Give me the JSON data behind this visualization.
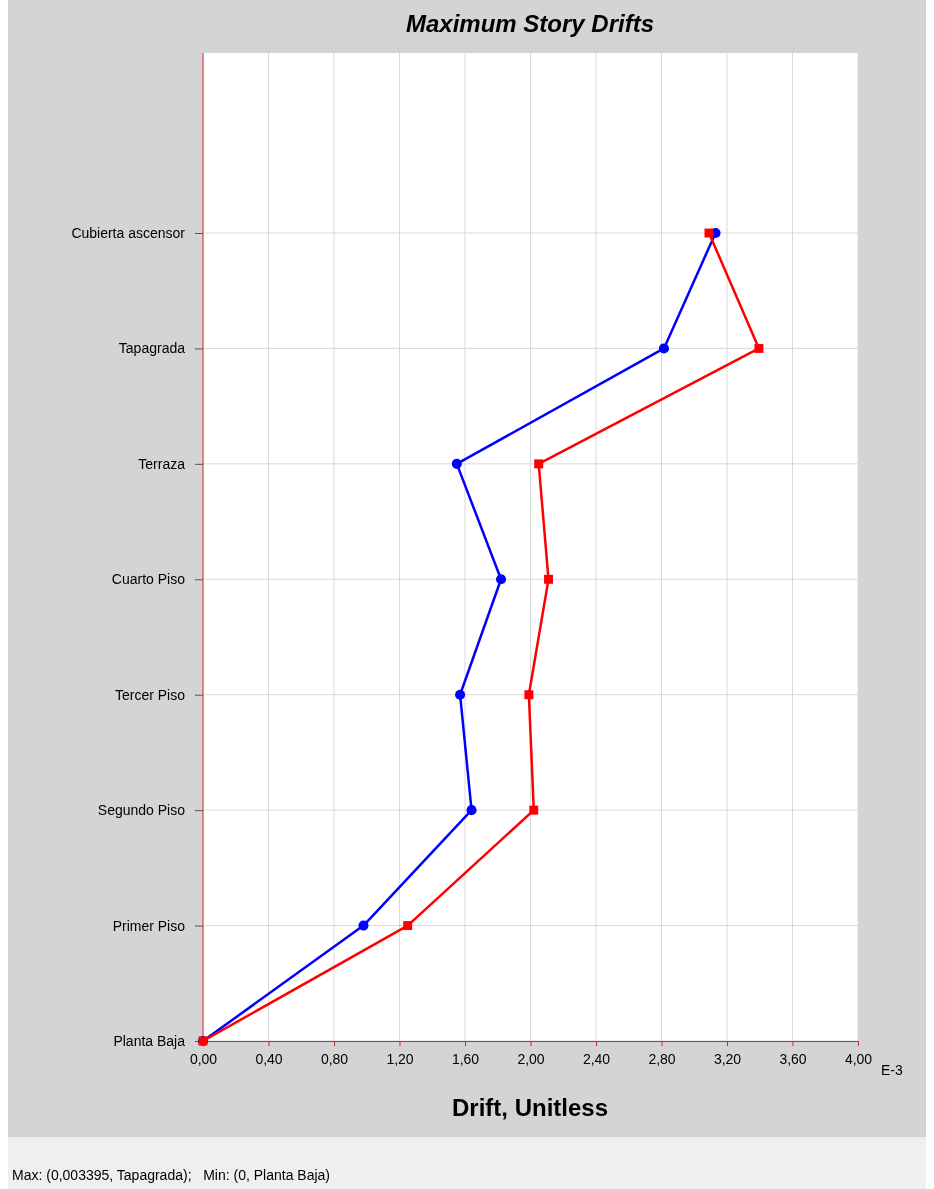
{
  "chart_data": {
    "type": "line",
    "orientation": "horizontal",
    "title": "Maximum Story Drifts",
    "xlabel": "Drift, Unitless",
    "categories": [
      "Cubierta ascensor",
      "Tapagrada",
      "Terraza",
      "Cuarto Piso",
      "Tercer Piso",
      "Segundo Piso",
      "Primer Piso",
      "Planta Baja"
    ],
    "xlim": [
      0,
      4
    ],
    "xticks": [
      {
        "value": 0,
        "label": "0,00"
      },
      {
        "value": 0.4,
        "label": "0,40"
      },
      {
        "value": 0.8,
        "label": "0,80"
      },
      {
        "value": 1.2,
        "label": "1,20"
      },
      {
        "value": 1.6,
        "label": "1,60"
      },
      {
        "value": 2,
        "label": "2,00"
      },
      {
        "value": 2.4,
        "label": "2,40"
      },
      {
        "value": 2.8,
        "label": "2,80"
      },
      {
        "value": 3.2,
        "label": "3,20"
      },
      {
        "value": 3.6,
        "label": "3,60"
      },
      {
        "value": 4,
        "label": "4,00"
      }
    ],
    "grid": true,
    "series": [
      {
        "color": "#0000ff",
        "marker": "circle",
        "values": [
          3.13,
          2.815,
          1.55,
          1.82,
          1.57,
          1.64,
          0.98,
          0
        ]
      },
      {
        "color": "#ff0000",
        "marker": "square",
        "values": [
          3.09,
          3.395,
          2.05,
          2.11,
          1.99,
          2.02,
          1.25,
          0
        ]
      }
    ],
    "annotations": [
      "E-3",
      "Max: (0,003395, Tapagrada);   Min: (0, Planta Baja)"
    ]
  }
}
